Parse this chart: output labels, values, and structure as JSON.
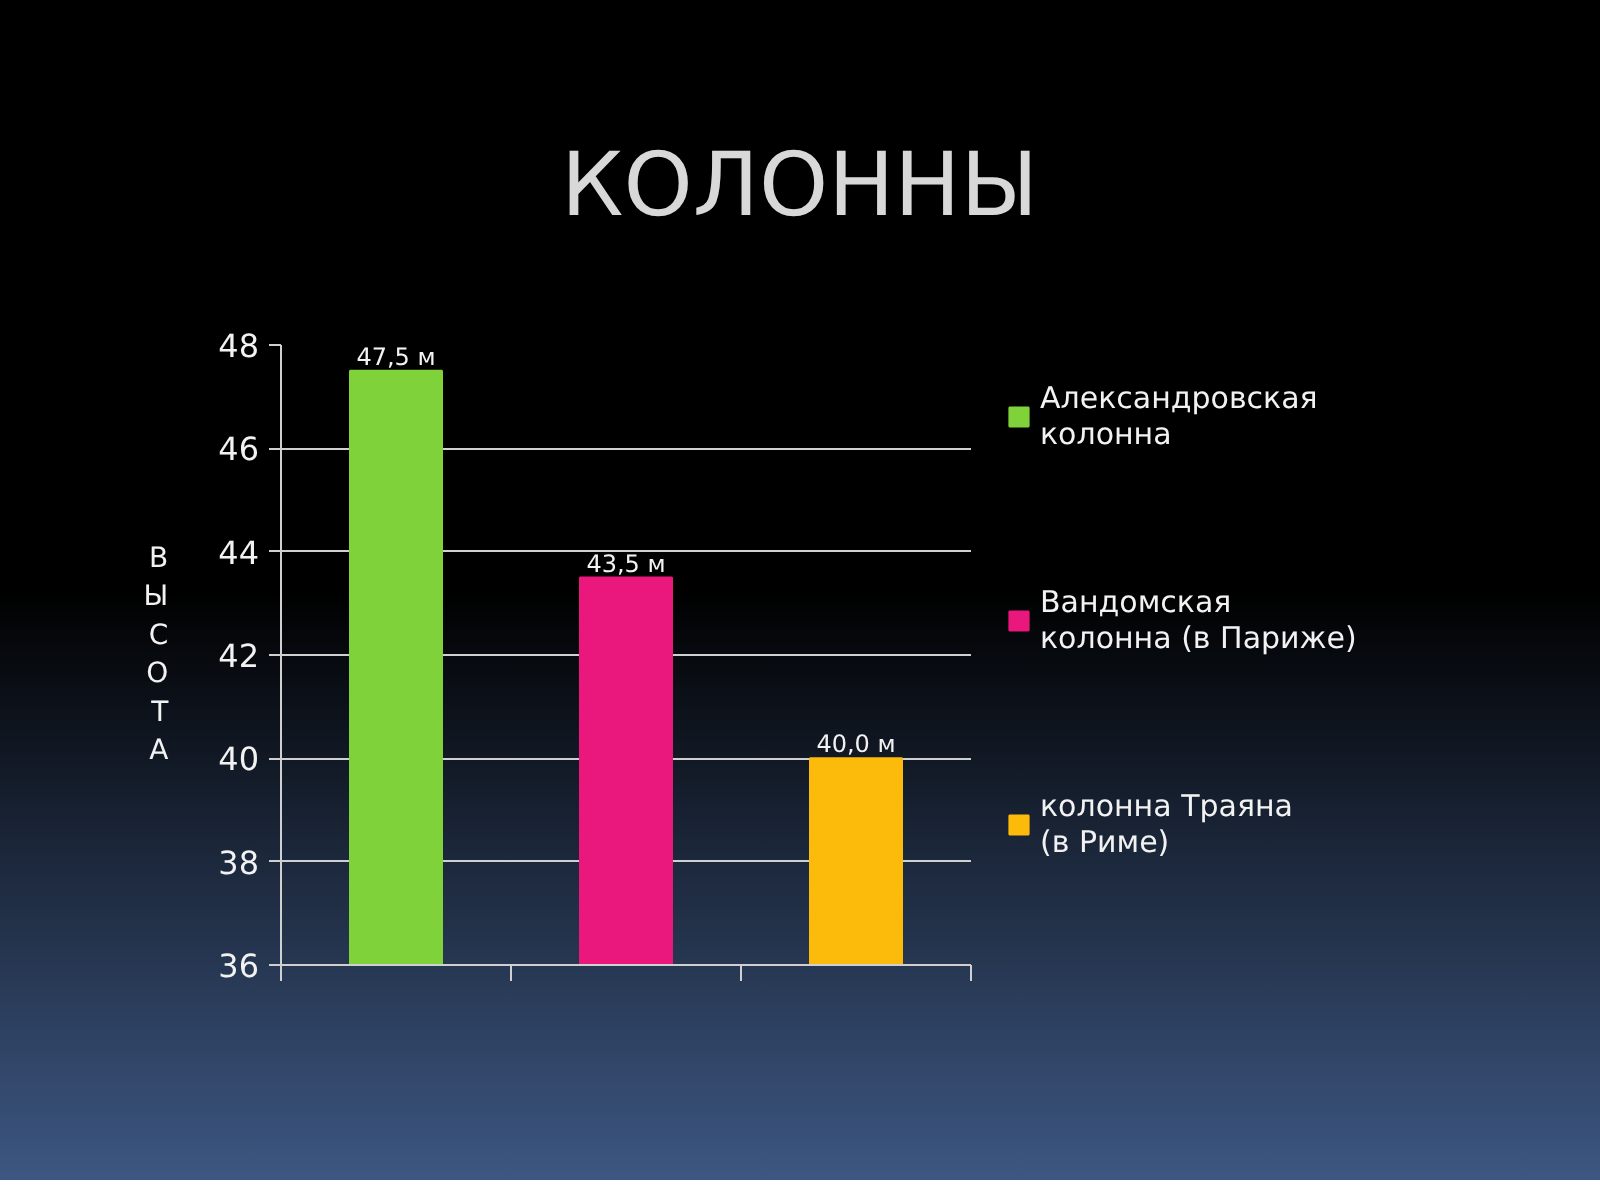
{
  "chart_data": {
    "type": "bar",
    "title": "КОЛОННЫ",
    "ylabel": "ВЫСОТА",
    "categories": [
      null,
      null,
      null
    ],
    "series": [
      {
        "name": "Александровская колонна",
        "color": "#80d23a",
        "values": [
          47.5,
          null,
          null
        ],
        "value_labels": [
          "47,5 м",
          null,
          null
        ]
      },
      {
        "name": "Вандомская колонна (в Париже)",
        "color": "#ea177c",
        "values": [
          null,
          43.5,
          null
        ],
        "value_labels": [
          null,
          "43,5 м",
          null
        ]
      },
      {
        "name": "колонна Траяна (в Риме)",
        "color": "#fcbb0a",
        "values": [
          null,
          null,
          40.0
        ],
        "value_labels": [
          null,
          null,
          "40,0 м"
        ]
      }
    ],
    "ylim": [
      36,
      48
    ],
    "yticks": [
      36,
      38,
      40,
      42,
      44,
      46,
      48
    ],
    "grid": "y",
    "legend": "right"
  }
}
